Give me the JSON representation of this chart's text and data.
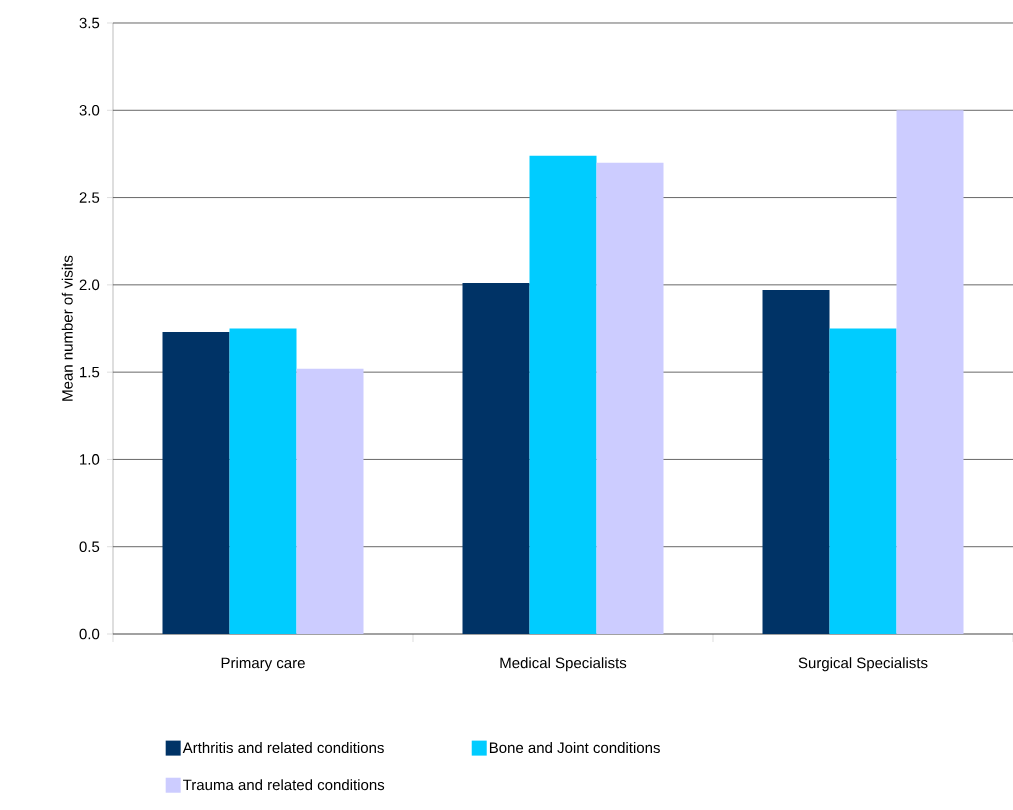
{
  "chart_data": {
    "type": "bar",
    "ylabel": "Mean number of visits",
    "categories": [
      "Primary care",
      "Medical Specialists",
      "Surgical Specialists"
    ],
    "series": [
      {
        "name": "Arthritis and related conditions",
        "color": "#003366",
        "values": [
          1.73,
          2.01,
          1.97
        ]
      },
      {
        "name": "Bone and Joint conditions",
        "color": "#00ccff",
        "values": [
          1.75,
          2.74,
          1.75
        ]
      },
      {
        "name": "Trauma and related conditions",
        "color": "#ccccff",
        "values": [
          1.52,
          2.7,
          3.0
        ]
      }
    ],
    "ylim": [
      0,
      3.5
    ],
    "yticks": [
      {
        "value": 0,
        "label": "0.0"
      },
      {
        "value": 0.5,
        "label": "0.5"
      },
      {
        "value": 1,
        "label": "1.0"
      },
      {
        "value": 1.5,
        "label": "1.5"
      },
      {
        "value": 2,
        "label": "2.0"
      },
      {
        "value": 2.5,
        "label": "2.5"
      },
      {
        "value": 3,
        "label": "3.0"
      },
      {
        "value": 3.5,
        "label": "3.5"
      }
    ],
    "grid": "y",
    "legend": "bottom"
  }
}
